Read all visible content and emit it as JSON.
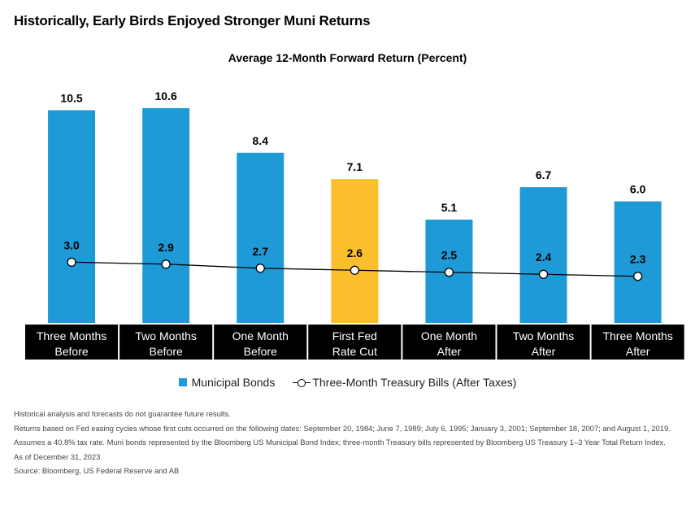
{
  "heading": "Historically, Early Birds Enjoyed Stronger Muni Returns",
  "colors": {
    "bar": "#1e9bd7",
    "highlight": "#fcbf2c",
    "label_bg": "#000000",
    "line": "#000000"
  },
  "chart_data": {
    "type": "bar",
    "title": "Average 12-Month Forward Return (Percent)",
    "categories": [
      [
        "Three Months",
        "Before"
      ],
      [
        "Two Months",
        "Before"
      ],
      [
        "One Month",
        "Before"
      ],
      [
        "First Fed",
        "Rate Cut"
      ],
      [
        "One Month",
        "After"
      ],
      [
        "Two Months",
        "After"
      ],
      [
        "Three Months",
        "After"
      ]
    ],
    "ylim": [
      0,
      10.6
    ],
    "highlight_index": 3,
    "series": [
      {
        "name": "Municipal Bonds",
        "type": "bar",
        "values": [
          10.5,
          10.6,
          8.4,
          7.1,
          5.1,
          6.7,
          6.0
        ]
      },
      {
        "name": "Three-Month Treasury Bills (After Taxes)",
        "type": "line",
        "values": [
          3.0,
          2.9,
          2.7,
          2.6,
          2.5,
          2.4,
          2.3
        ]
      }
    ],
    "legend_position": "bottom",
    "grid": false
  },
  "notes": [
    "Historical analysis and forecasts do not guarantee future results.",
    "Returns based on Fed easing cycles whose first cuts occurred on the following dates: September 20, 1984; June 7, 1989; July 6, 1995; January 3, 2001; September 18, 2007; and August 1, 2019.",
    "Assumes a 40.8% tax rate. Muni bonds represented by the Bloomberg US Municipal Bond Index; three-month Treasury bills represented by Bloomberg US Treasury 1–3 Year Total Return Index.",
    "As of December 31, 2023",
    "Source: Bloomberg, US Federal Reserve and AB"
  ]
}
